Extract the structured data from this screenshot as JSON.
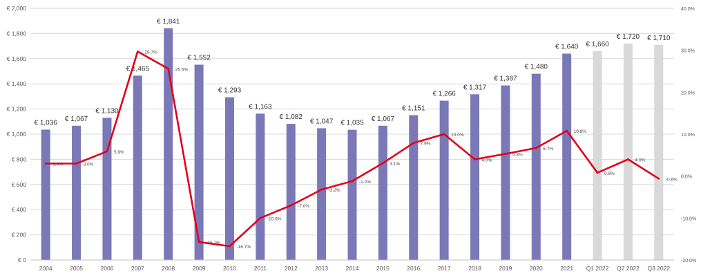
{
  "chart_data": {
    "type": "bar",
    "title": "",
    "xlabel": "",
    "ylabel": "",
    "categories": [
      "2004",
      "2005",
      "2006",
      "2007",
      "2008",
      "2009",
      "2010",
      "2011",
      "2012",
      "2013",
      "2014",
      "2015",
      "2016",
      "2017",
      "2018",
      "2019",
      "2020",
      "2021",
      "Q1 2022",
      "Q2 2022",
      "Q3 2022"
    ],
    "series": [
      {
        "type": "bar",
        "axis": "left",
        "values": [
          1036,
          1067,
          1130,
          1465,
          1841,
          1552,
          1293,
          1163,
          1082,
          1047,
          1035,
          1067,
          1151,
          1266,
          1317,
          1387,
          1480,
          1640,
          1660,
          1720,
          1710
        ],
        "labels": [
          "€ 1,036",
          "€ 1,067",
          "€ 1,130",
          "€ 1,465",
          "€ 1,841",
          "€ 1,552",
          "€ 1,293",
          "€ 1,163",
          "€ 1,082",
          "€ 1,047",
          "€ 1,035",
          "€ 1,067",
          "€ 1,151",
          "€ 1,266",
          "€ 1,317",
          "€ 1,387",
          "€ 1,480",
          "€ 1,640",
          "€ 1,660",
          "€ 1,720",
          "€ 1,710"
        ],
        "colors": [
          "#7b78b8",
          "#7b78b8",
          "#7b78b8",
          "#7b78b8",
          "#7b78b8",
          "#7b78b8",
          "#7b78b8",
          "#7b78b8",
          "#7b78b8",
          "#7b78b8",
          "#7b78b8",
          "#7b78b8",
          "#7b78b8",
          "#7b78b8",
          "#7b78b8",
          "#7b78b8",
          "#7b78b8",
          "#7b78b8",
          "#d9d9d9",
          "#d9d9d9",
          "#d9d9d9"
        ]
      },
      {
        "type": "line",
        "axis": "right",
        "color": "#e0001b",
        "values": [
          3.0,
          3.0,
          5.9,
          29.7,
          25.6,
          -15.7,
          -16.7,
          -10.0,
          -7.0,
          -3.2,
          -1.2,
          3.1,
          7.9,
          10.0,
          4.0,
          5.3,
          6.7,
          10.8,
          0.8,
          4.0,
          -0.6
        ],
        "labels": [
          "3.0%",
          "3.0%",
          "5.9%",
          "29.7%",
          "25.6%",
          "-15.7%",
          "-16.7%",
          "-10.0%",
          "-7.0%",
          "-3.2%",
          "-1.2%",
          "3.1%",
          "7.9%",
          "10.0%",
          "4.0%",
          "5.3%",
          "6.7%",
          "10.8%",
          "0.8%",
          "4.0%",
          "-0.6%"
        ]
      }
    ],
    "y_left": {
      "min": 0,
      "max": 2000,
      "step": 200,
      "tick_labels": [
        "€ 0",
        "€ 200",
        "€ 400",
        "€ 600",
        "€ 800",
        "€ 1,000",
        "€ 1,200",
        "€ 1,400",
        "€ 1,600",
        "€ 1,800",
        "€ 2,000"
      ]
    },
    "y_right": {
      "min": -20,
      "max": 40,
      "step": 10,
      "tick_labels": [
        "-20.0%",
        "-10.0%",
        "0.0%",
        "10.0%",
        "20.0%",
        "30.0%",
        "40.0%"
      ]
    },
    "grid": true,
    "legend": "none"
  }
}
